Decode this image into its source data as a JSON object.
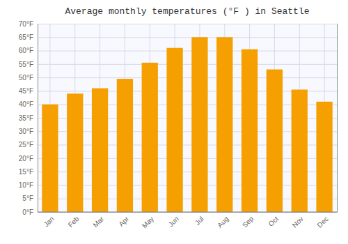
{
  "chart_data": {
    "type": "bar",
    "title": "Average monthly temperatures (°F ) in Seattle",
    "categories": [
      "Jan",
      "Feb",
      "Mar",
      "Apr",
      "May",
      "Jun",
      "Jul",
      "Aug",
      "Sep",
      "Oct",
      "Nov",
      "Dec"
    ],
    "values": [
      40,
      44,
      46,
      49.5,
      55.5,
      61,
      65,
      65,
      60.5,
      53,
      45.5,
      41
    ],
    "color": "#F5A000",
    "ylim": [
      0,
      70
    ],
    "yticks": [
      {
        "value": 0,
        "label": "0°F"
      },
      {
        "value": 5,
        "label": "5°F"
      },
      {
        "value": 10,
        "label": "10°F"
      },
      {
        "value": 15,
        "label": "15°F"
      },
      {
        "value": 20,
        "label": "20°F"
      },
      {
        "value": 25,
        "label": "25°F"
      },
      {
        "value": 30,
        "label": "30°F"
      },
      {
        "value": 35,
        "label": "35°F"
      },
      {
        "value": 40,
        "label": "40°F"
      },
      {
        "value": 45,
        "label": "45°F"
      },
      {
        "value": 50,
        "label": "50°F"
      },
      {
        "value": 55,
        "label": "55°F"
      },
      {
        "value": 60,
        "label": "60°F"
      },
      {
        "value": 65,
        "label": "65°F"
      },
      {
        "value": 70,
        "label": "70°F"
      }
    ],
    "grid": true
  }
}
